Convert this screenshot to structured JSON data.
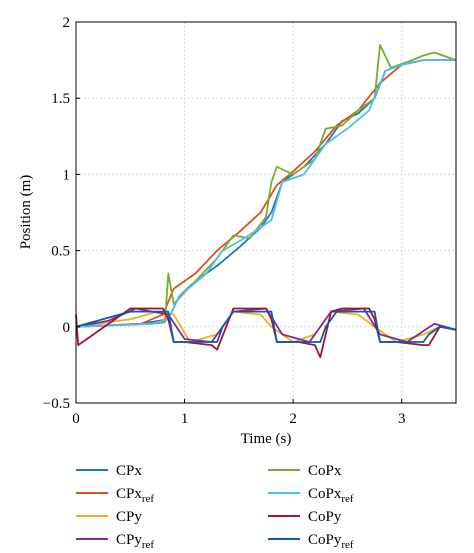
{
  "chart_data": {
    "type": "line",
    "xlabel": "Time (s)",
    "ylabel": "Position (m)",
    "xlim": [
      0,
      3.5
    ],
    "ylim": [
      -0.5,
      2
    ],
    "xticks": [
      "0",
      "1",
      "2",
      "3"
    ],
    "yticks": [
      "−0.5",
      "0",
      "0.5",
      "1",
      "1.5",
      "2"
    ],
    "grid": true,
    "legend_position": "below plot",
    "series": [
      {
        "name": "CPx",
        "name_main": "CPx",
        "name_sub": "",
        "color": "#1f77b4",
        "x": [
          0,
          0.6,
          0.85,
          0.95,
          1.1,
          1.3,
          1.5,
          1.7,
          1.8,
          1.9,
          2.1,
          2.3,
          2.45,
          2.6,
          2.75,
          2.85,
          3.0,
          3.2,
          3.5
        ],
        "y": [
          0,
          0.02,
          0.05,
          0.2,
          0.3,
          0.4,
          0.52,
          0.65,
          0.75,
          0.95,
          1.05,
          1.2,
          1.35,
          1.4,
          1.5,
          1.68,
          1.72,
          1.75,
          1.75
        ]
      },
      {
        "name": "CPxref",
        "name_main": "CPx",
        "name_sub": "ref",
        "color": "#d95319",
        "x": [
          0,
          0.6,
          0.8,
          0.9,
          1.1,
          1.3,
          1.5,
          1.7,
          1.85,
          2.0,
          2.2,
          2.4,
          2.6,
          2.8,
          3.0,
          3.2,
          3.5
        ],
        "y": [
          0,
          0.02,
          0.08,
          0.25,
          0.35,
          0.5,
          0.62,
          0.75,
          0.93,
          1.02,
          1.15,
          1.32,
          1.42,
          1.6,
          1.72,
          1.75,
          1.75
        ]
      },
      {
        "name": "CPy",
        "name_main": "CPy",
        "name_sub": "",
        "color": "#edb120",
        "x": [
          0,
          0.5,
          0.75,
          0.9,
          1.05,
          1.3,
          1.45,
          1.7,
          1.8,
          2.0,
          2.2,
          2.35,
          2.6,
          2.75,
          2.95,
          3.2,
          3.35,
          3.5
        ],
        "y": [
          0,
          0.05,
          0.1,
          0.08,
          -0.1,
          -0.05,
          0.1,
          0.08,
          0,
          -0.1,
          -0.05,
          0.1,
          0.08,
          0,
          -0.1,
          -0.05,
          0,
          -0.02
        ]
      },
      {
        "name": "CPyref",
        "name_main": "CPy",
        "name_sub": "ref",
        "color": "#7e2f8e",
        "x": [
          0,
          0.3,
          0.55,
          0.85,
          1.0,
          1.25,
          1.45,
          1.75,
          1.9,
          2.15,
          2.35,
          2.65,
          2.8,
          3.05,
          3.3,
          3.5
        ],
        "y": [
          0,
          0.04,
          0.12,
          0.08,
          -0.08,
          -0.1,
          0.1,
          0.12,
          -0.05,
          -0.1,
          0.1,
          0.12,
          -0.05,
          -0.1,
          0.02,
          -0.02
        ]
      },
      {
        "name": "CoPx",
        "name_main": "CoPx",
        "name_sub": "",
        "color": "#77ac30",
        "x": [
          0,
          0.7,
          0.82,
          0.85,
          0.9,
          1.1,
          1.3,
          1.45,
          1.6,
          1.75,
          1.8,
          1.85,
          2.0,
          2.2,
          2.3,
          2.45,
          2.6,
          2.75,
          2.8,
          2.9,
          3.1,
          3.2,
          3.3,
          3.5
        ],
        "y": [
          0,
          0.02,
          0.03,
          0.35,
          0.15,
          0.3,
          0.45,
          0.6,
          0.58,
          0.72,
          0.95,
          1.05,
          1.0,
          1.1,
          1.3,
          1.32,
          1.42,
          1.5,
          1.85,
          1.7,
          1.75,
          1.78,
          1.8,
          1.75
        ]
      },
      {
        "name": "CoPxref",
        "name_main": "CoPx",
        "name_sub": "ref",
        "color": "#4dbeee",
        "x": [
          0,
          0.7,
          0.85,
          0.95,
          1.2,
          1.35,
          1.55,
          1.8,
          1.9,
          2.1,
          2.3,
          2.5,
          2.7,
          2.85,
          3.0,
          3.2,
          3.5
        ],
        "y": [
          0,
          0.02,
          0.05,
          0.2,
          0.35,
          0.5,
          0.58,
          0.7,
          0.95,
          1.0,
          1.2,
          1.3,
          1.42,
          1.68,
          1.72,
          1.75,
          1.75
        ]
      },
      {
        "name": "CoPy",
        "name_main": "CoPy",
        "name_sub": "",
        "color": "#a2142f",
        "x": [
          0,
          0.02,
          0.5,
          0.8,
          0.85,
          0.9,
          1.0,
          1.25,
          1.3,
          1.45,
          1.5,
          1.75,
          1.8,
          1.85,
          2.05,
          2.2,
          2.25,
          2.35,
          2.45,
          2.7,
          2.75,
          2.8,
          2.95,
          3.2,
          3.25,
          3.35,
          3.5
        ],
        "y": [
          0.08,
          -0.12,
          0.12,
          0.12,
          0.05,
          -0.1,
          -0.1,
          -0.12,
          -0.15,
          0.12,
          0.12,
          0.12,
          0.05,
          -0.1,
          -0.1,
          -0.12,
          -0.2,
          0.1,
          0.12,
          0.12,
          0.05,
          -0.1,
          -0.1,
          -0.12,
          -0.12,
          0.0,
          -0.02
        ]
      },
      {
        "name": "CoPyref",
        "name_main": "CoPy",
        "name_sub": "ref",
        "color": "#0d5cab",
        "x": [
          0,
          0.5,
          0.85,
          0.9,
          1.3,
          1.35,
          1.45,
          1.8,
          1.85,
          2.25,
          2.3,
          2.4,
          2.75,
          2.8,
          3.2,
          3.25,
          3.35,
          3.5
        ],
        "y": [
          0,
          0.1,
          0.1,
          -0.1,
          -0.1,
          0.0,
          0.1,
          0.1,
          -0.1,
          -0.1,
          0.0,
          0.1,
          0.1,
          -0.1,
          -0.1,
          -0.05,
          0.0,
          -0.02
        ]
      }
    ]
  }
}
